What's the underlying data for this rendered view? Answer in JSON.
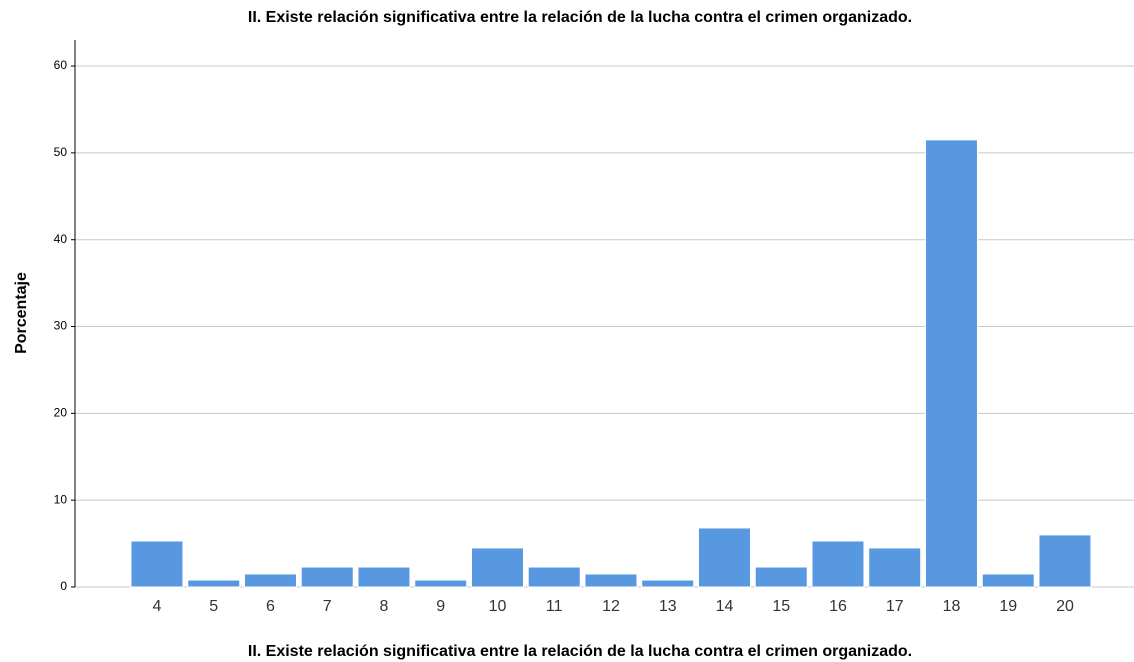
{
  "chart_data": {
    "type": "bar",
    "title": "II.  Existe relación significativa entre la relación de la lucha contra el crimen organizado.",
    "x_label": "II.  Existe relación significativa entre la relación de la lucha contra el crimen organizado.",
    "y_label": "Porcentaje",
    "categories": [
      "4",
      "5",
      "6",
      "7",
      "8",
      "9",
      "10",
      "11",
      "12",
      "13",
      "14",
      "15",
      "16",
      "17",
      "18",
      "19",
      "20"
    ],
    "values": [
      5.3,
      0.8,
      1.5,
      2.3,
      2.3,
      0.8,
      4.5,
      2.3,
      1.5,
      0.8,
      6.8,
      2.3,
      5.3,
      4.5,
      51.5,
      1.5,
      6.0
    ],
    "color": "#5898e0",
    "ylim": [
      0,
      63
    ],
    "yticks": [
      0,
      10,
      20,
      30,
      40,
      50,
      60
    ],
    "grid": true
  }
}
